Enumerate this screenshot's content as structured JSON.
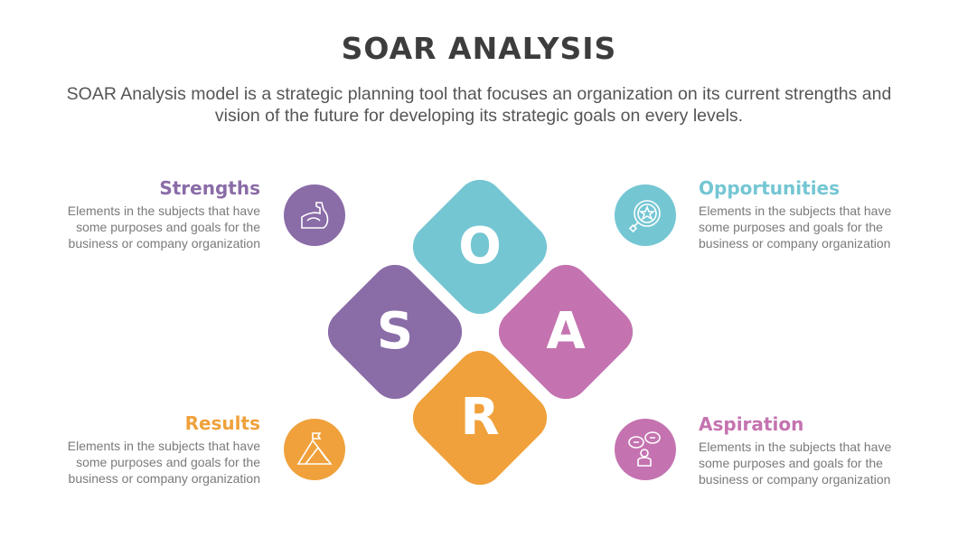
{
  "title": "SOAR ANALYSIS",
  "subtitle": "SOAR Analysis model is a strategic planning tool that focuses an organization on its current strengths and vision of the future for developing its strategic goals on every levels.",
  "colors": {
    "strengths": "#8a6ca7",
    "opportunities": "#74c6d3",
    "aspiration": "#c473b0",
    "results": "#f0a13b"
  },
  "letters": {
    "s": "S",
    "o": "O",
    "a": "A",
    "r": "R"
  },
  "items": [
    {
      "title": "Strengths",
      "icon": "flexed-arm-icon",
      "lines": [
        "Elements in the subjects that have",
        "some purposes and goals for the",
        "business or company organization"
      ]
    },
    {
      "title": "Opportunities",
      "icon": "magnifier-star-icon",
      "lines": [
        "Elements in the subjects that have",
        "some purposes and goals for the",
        "business or company organization"
      ]
    },
    {
      "title": "Results",
      "icon": "mountain-flag-icon",
      "lines": [
        "Elements in the subjects that have",
        "some purposes and goals for the",
        "business or company organization"
      ]
    },
    {
      "title": "Aspiration",
      "icon": "person-speech-bubbles-icon",
      "lines": [
        "Elements in the subjects that have",
        "some purposes and goals for the",
        "business or company organization"
      ]
    }
  ]
}
